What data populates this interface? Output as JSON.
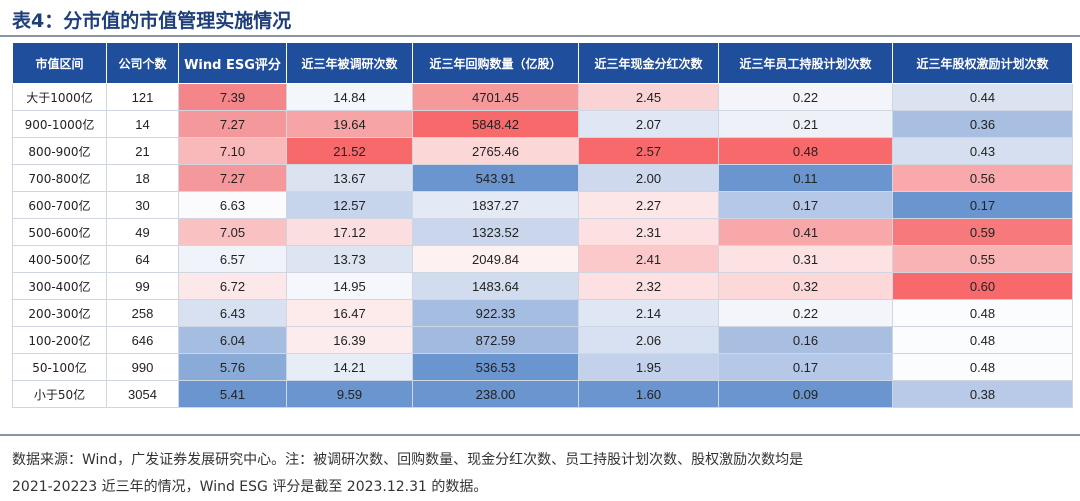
{
  "title": "表4：分市值的市值管理实施情况",
  "headers": [
    "市值区间",
    "公司个数",
    "Wind ESG评分",
    "近三年被调研次数",
    "近三年回购数量（亿股）",
    "近三年现金分红次数",
    "近三年员工持股计划次数",
    "近三年股权激励计划次数"
  ],
  "rows": [
    {
      "cells": [
        "大于1000亿",
        "121",
        "7.39",
        "14.84",
        "4701.45",
        "2.45",
        "0.22",
        "0.44"
      ],
      "colors": [
        "#ffffff",
        "#ffffff",
        "#f4868a",
        "#f3f6fb",
        "#f6999b",
        "#fad3d4",
        "#f3f5fa",
        "#dbe3f1"
      ]
    },
    {
      "cells": [
        "900-1000亿",
        "14",
        "7.27",
        "19.64",
        "5848.42",
        "2.07",
        "0.21",
        "0.36"
      ],
      "colors": [
        "#ffffff",
        "#ffffff",
        "#f5989b",
        "#f6a4a6",
        "#f8696b",
        "#dfe7f4",
        "#eef2f8",
        "#a9bfe2"
      ]
    },
    {
      "cells": [
        "800-900亿",
        "21",
        "7.10",
        "21.52",
        "2765.46",
        "2.57",
        "0.48",
        "0.43"
      ],
      "colors": [
        "#ffffff",
        "#ffffff",
        "#f9b9ba",
        "#f8696b",
        "#fcd7d8",
        "#f8696b",
        "#f8696b",
        "#d6dff0"
      ]
    },
    {
      "cells": [
        "700-800亿",
        "18",
        "7.27",
        "13.67",
        "543.91",
        "2.00",
        "0.11",
        "0.56"
      ],
      "colors": [
        "#ffffff",
        "#ffffff",
        "#f5989b",
        "#dbe3f1",
        "#6b95cf",
        "#ced9ee",
        "#6b95cf",
        "#f9a9ab"
      ]
    },
    {
      "cells": [
        "600-700亿",
        "30",
        "6.63",
        "12.57",
        "1837.27",
        "2.27",
        "0.17",
        "0.17"
      ],
      "colors": [
        "#ffffff",
        "#ffffff",
        "#fbfbfd",
        "#c6d4ec",
        "#e4eaf5",
        "#fde6e7",
        "#b5c8e7",
        "#6b95cf"
      ]
    },
    {
      "cells": [
        "500-600亿",
        "49",
        "7.05",
        "17.12",
        "1323.52",
        "2.31",
        "0.41",
        "0.59"
      ],
      "colors": [
        "#ffffff",
        "#ffffff",
        "#fac1c2",
        "#fbdedf",
        "#c9d6ec",
        "#fde0e1",
        "#f9a8aa",
        "#f8797b"
      ]
    },
    {
      "cells": [
        "400-500亿",
        "64",
        "6.57",
        "13.73",
        "2049.84",
        "2.41",
        "0.31",
        "0.55"
      ],
      "colors": [
        "#ffffff",
        "#ffffff",
        "#f0f3fa",
        "#dde5f2",
        "#fef1f1",
        "#fcc9ca",
        "#fde2e3",
        "#fab3b4"
      ]
    },
    {
      "cells": [
        "300-400亿",
        "99",
        "6.72",
        "14.95",
        "1483.64",
        "2.32",
        "0.32",
        "0.60"
      ],
      "colors": [
        "#ffffff",
        "#ffffff",
        "#fde8e9",
        "#f5f7fc",
        "#d1dcef",
        "#fde0e1",
        "#fdd8d9",
        "#f8696b"
      ]
    },
    {
      "cells": [
        "200-300亿",
        "258",
        "6.43",
        "16.47",
        "922.33",
        "2.14",
        "0.22",
        "0.48"
      ],
      "colors": [
        "#ffffff",
        "#ffffff",
        "#d8e1f1",
        "#fdeaea",
        "#a6bde2",
        "#dfe7f4",
        "#f3f5fa",
        "#fbfcfe"
      ]
    },
    {
      "cells": [
        "100-200亿",
        "646",
        "6.04",
        "16.39",
        "872.59",
        "2.06",
        "0.16",
        "0.48"
      ],
      "colors": [
        "#ffffff",
        "#ffffff",
        "#a6bde2",
        "#fdeced",
        "#a2bae0",
        "#d8e1f1",
        "#a9bfe2",
        "#fbfcfe"
      ]
    },
    {
      "cells": [
        "50-100亿",
        "990",
        "5.76",
        "14.21",
        "536.53",
        "1.95",
        "0.17",
        "0.48"
      ],
      "colors": [
        "#ffffff",
        "#ffffff",
        "#8aabd8",
        "#e7edf7",
        "#6b95cf",
        "#c3d2ea",
        "#b5c8e7",
        "#fbfcfe"
      ]
    },
    {
      "cells": [
        "小于50亿",
        "3054",
        "5.41",
        "9.59",
        "238.00",
        "1.60",
        "0.09",
        "0.38"
      ],
      "colors": [
        "#ffffff",
        "#ffffff",
        "#6b95cf",
        "#6b95cf",
        "#6b95cf",
        "#6b95cf",
        "#6b95cf",
        "#b8cae8"
      ]
    }
  ],
  "note_line1": "数据来源：Wind，广发证券发展研究中心。注：被调研次数、回购数量、现金分红次数、员工持股计划次数、股权激励次数均是",
  "note_line2": "2021-20223 近三年的情况，Wind ESG 评分是截至 2023.12.31 的数据。"
}
